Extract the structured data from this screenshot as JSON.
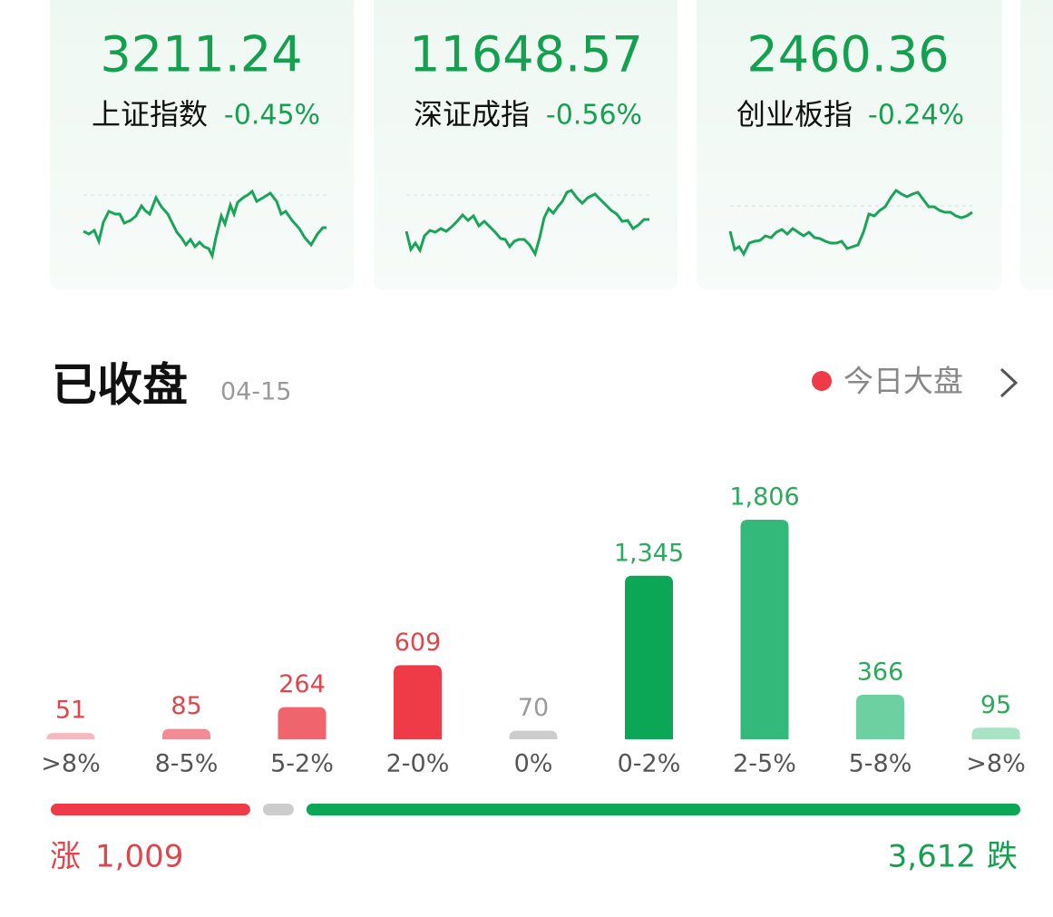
{
  "indices": [
    {
      "value": "3211.24",
      "name": "上证指数",
      "change": "-0.45%"
    },
    {
      "value": "11648.57",
      "name": "深证成指",
      "change": "-0.56%"
    },
    {
      "value": "2460.36",
      "name": "创业板指",
      "change": "-0.24%"
    }
  ],
  "status": {
    "title": "已收盘",
    "date": "04-15",
    "link": "今日大盘"
  },
  "chart_data": {
    "type": "bar",
    "categories": [
      ">8%",
      "8-5%",
      "5-2%",
      "2-0%",
      "0%",
      "0-2%",
      "2-5%",
      "5-8%",
      ">8%"
    ],
    "values": [
      51,
      85,
      264,
      609,
      70,
      1345,
      1806,
      366,
      95
    ],
    "value_labels": [
      "51",
      "85",
      "264",
      "609",
      "70",
      "1,345",
      "1,806",
      "366",
      "95"
    ],
    "colors": [
      "#f6b8be",
      "#f18c94",
      "#f0646e",
      "#ef3a48",
      "#cccccc",
      "#0ba656",
      "#33b97a",
      "#6dd0a0",
      "#a8e3c6"
    ],
    "label_colors": [
      "#e0454b",
      "#e0454b",
      "#e0454b",
      "#e0454b",
      "#9a9a9a",
      "#2aab5c",
      "#2aab5c",
      "#2aab5c",
      "#2aab5c"
    ]
  },
  "summary": {
    "up_label": "涨",
    "up": "1,009",
    "down": "3,612",
    "down_label": "跌"
  }
}
